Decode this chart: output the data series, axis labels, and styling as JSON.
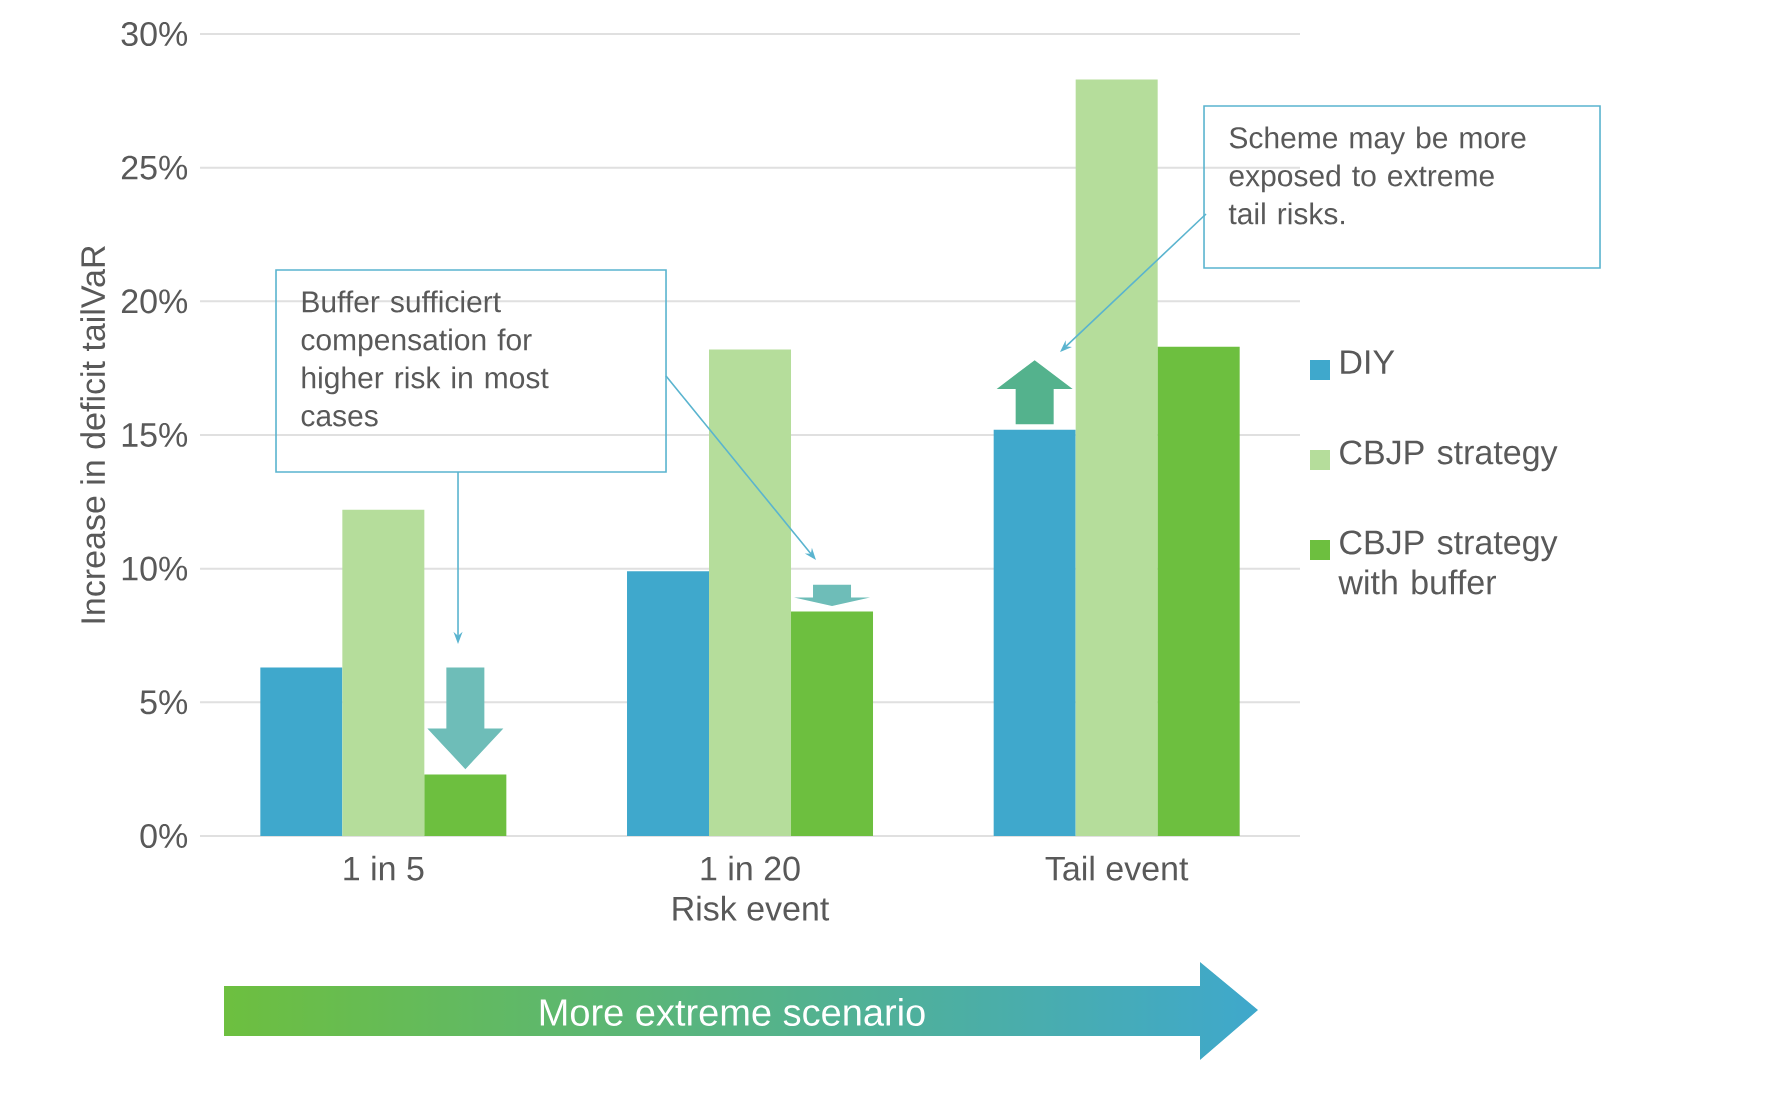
{
  "chart_data": {
    "type": "bar",
    "ylabel": "Increase in deficit tailVaR",
    "xlabel": "Risk event",
    "categories": [
      "1 in 5",
      "1 in 20",
      "Tail event"
    ],
    "series": [
      {
        "name": "DIY",
        "color": "#3fa8cc",
        "values": [
          6.3,
          9.9,
          15.2
        ]
      },
      {
        "name": "CBJP strategy",
        "color": "#b5dd9b",
        "values": [
          12.2,
          18.2,
          28.3
        ]
      },
      {
        "name": "CBJP strategy with buffer",
        "color": "#6dbf3f",
        "values": [
          2.3,
          8.4,
          18.3
        ]
      }
    ],
    "ylim": [
      0,
      30
    ],
    "yticks": [
      {
        "value": 0,
        "label": "0%"
      },
      {
        "value": 5,
        "label": "5%"
      },
      {
        "value": 10,
        "label": "10%"
      },
      {
        "value": 15,
        "label": "15%"
      },
      {
        "value": 20,
        "label": "20%"
      },
      {
        "value": 25,
        "label": "25%"
      },
      {
        "value": 30,
        "label": "30%"
      }
    ],
    "grid": "y",
    "legend": "right",
    "annotations": [
      "Buffer sufficiert compensation for higher risk in most cases",
      "Scheme may be more exposed to extreme tail risks.",
      "More extreme scenario"
    ]
  }
}
